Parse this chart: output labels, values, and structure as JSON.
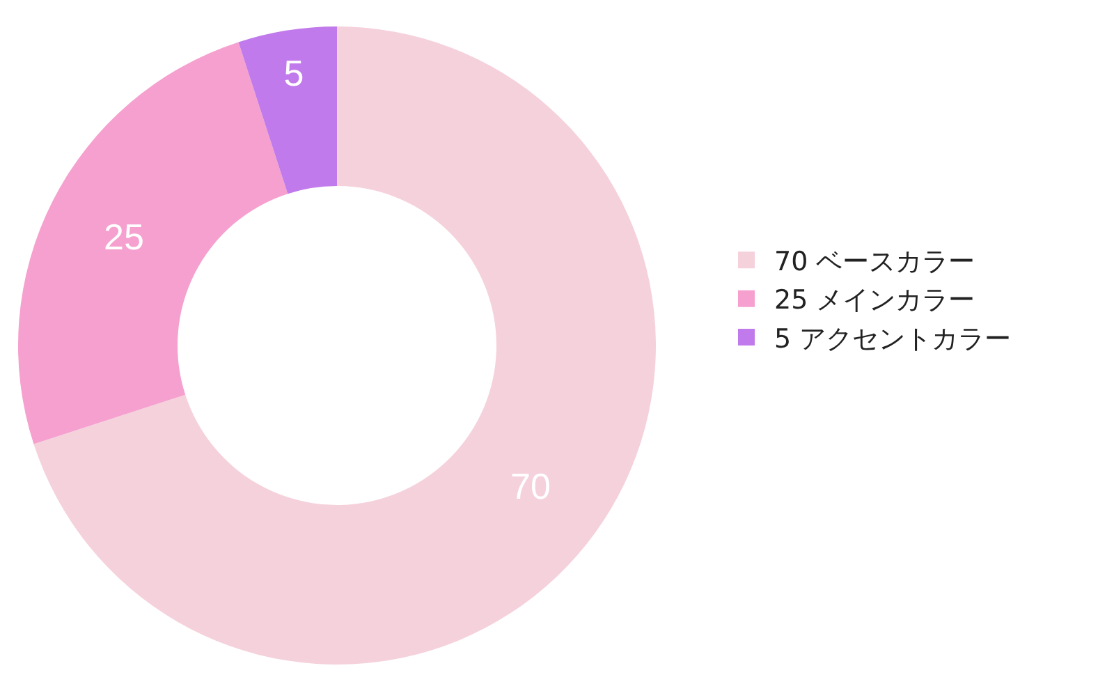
{
  "chart_data": {
    "type": "donut",
    "categories": [
      "70 ベースカラー",
      "25 メインカラー",
      "5 アクセントカラー"
    ],
    "values": [
      70,
      25,
      5
    ],
    "colors": [
      "#f5d1dc",
      "#f5a0cf",
      "#c17aeb"
    ],
    "data_labels": true,
    "legend": "right"
  }
}
